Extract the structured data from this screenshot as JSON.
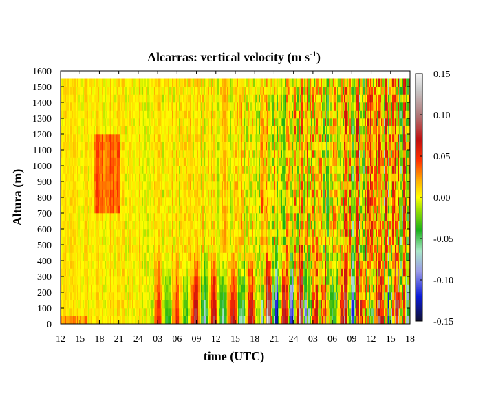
{
  "chart_data": {
    "type": "heatmap",
    "title": "Alcarras: vertical velocity (m s",
    "title_sup": "-1",
    "title_end": ")",
    "xlabel": "time (UTC)",
    "ylabel": "Altura (m)",
    "x_ticks": [
      "12",
      "15",
      "18",
      "21",
      "24",
      "03",
      "06",
      "09",
      "12",
      "15",
      "18",
      "21",
      "24",
      "03",
      "06",
      "09",
      "12",
      "15",
      "18"
    ],
    "y_ticks": [
      0,
      100,
      200,
      300,
      400,
      500,
      600,
      700,
      800,
      900,
      1000,
      1100,
      1200,
      1300,
      1400,
      1500,
      1600
    ],
    "ylim": [
      0,
      1600
    ],
    "colorbar": {
      "ticks": [
        "0.15",
        "0.10",
        "0.05",
        "0.00",
        "-0.05",
        "-0.10",
        "-0.15"
      ],
      "range": [
        -0.15,
        0.15
      ],
      "colors": [
        {
          "v": -0.15,
          "c": "#101030"
        },
        {
          "v": -0.12,
          "c": "#0a1ad8"
        },
        {
          "v": -0.09,
          "c": "#9a9ae8"
        },
        {
          "v": -0.065,
          "c": "#a8e8c8"
        },
        {
          "v": -0.04,
          "c": "#1ab01a"
        },
        {
          "v": -0.015,
          "c": "#9ce000"
        },
        {
          "v": 0.0,
          "c": "#ffff00"
        },
        {
          "v": 0.02,
          "c": "#ffb000"
        },
        {
          "v": 0.045,
          "c": "#ff3000"
        },
        {
          "v": 0.07,
          "c": "#c01010"
        },
        {
          "v": 0.1,
          "c": "#b07878"
        },
        {
          "v": 0.13,
          "c": "#c8c8c8"
        },
        {
          "v": 0.15,
          "c": "#f4f4f4"
        }
      ]
    },
    "data_top_height": 1550
  }
}
